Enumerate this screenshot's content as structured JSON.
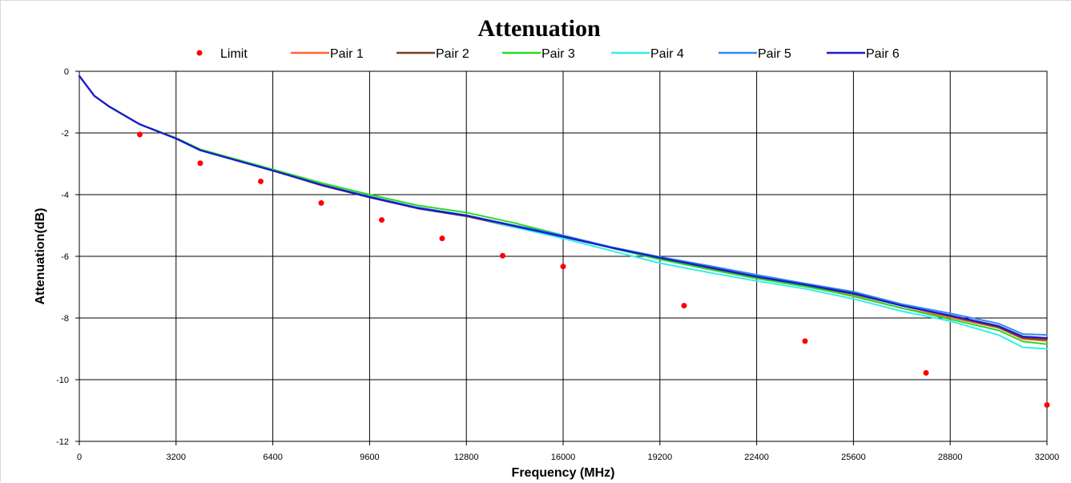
{
  "chart_data": {
    "type": "line",
    "title": "Attenuation",
    "xlabel": "Frequency (MHz)",
    "ylabel": "Attenuation(dB)",
    "xlim": [
      0,
      32000
    ],
    "ylim": [
      -12,
      0
    ],
    "x_ticks": [
      "0",
      "3200",
      "6400",
      "9600",
      "12800",
      "16000",
      "19200",
      "22400",
      "25600",
      "28800",
      "32000"
    ],
    "y_ticks": [
      "0",
      "-2",
      "-4",
      "-6",
      "-8",
      "-10",
      "-12"
    ],
    "x_tick_values": [
      0,
      3200,
      6400,
      9600,
      12800,
      16000,
      19200,
      22400,
      25600,
      28800,
      32000
    ],
    "y_tick_values": [
      0,
      -2,
      -4,
      -6,
      -8,
      -10,
      -12
    ],
    "grid": true,
    "legend_position": "top",
    "limit": {
      "name": "Limit",
      "color": "#ff0000",
      "x": [
        2000,
        4000,
        6000,
        8000,
        10000,
        12000,
        14000,
        16000,
        20000,
        24000,
        28000,
        32000
      ],
      "y": [
        -2.05,
        -2.98,
        -3.57,
        -4.27,
        -4.82,
        -5.42,
        -5.98,
        -6.33,
        -7.6,
        -8.75,
        -9.78,
        -10.82
      ]
    },
    "series": [
      {
        "name": "Pair 1",
        "color": "#ff6633",
        "x": [
          0,
          500,
          1000,
          2000,
          3200,
          4000,
          6400,
          8000,
          9600,
          11200,
          12800,
          14400,
          16000,
          17600,
          19200,
          20800,
          22400,
          24000,
          25600,
          27200,
          28800,
          30400,
          31200,
          32000
        ],
        "y": [
          -0.15,
          -0.8,
          -1.15,
          -1.72,
          -2.18,
          -2.56,
          -3.22,
          -3.68,
          -4.06,
          -4.42,
          -4.67,
          -5.0,
          -5.32,
          -5.72,
          -6.06,
          -6.36,
          -6.67,
          -6.95,
          -7.3,
          -7.68,
          -7.98,
          -8.32,
          -8.68,
          -8.75
        ]
      },
      {
        "name": "Pair 2",
        "color": "#7b3f1e",
        "x": [
          0,
          500,
          1000,
          2000,
          3200,
          4000,
          6400,
          8000,
          9600,
          11200,
          12800,
          14400,
          16000,
          17600,
          19200,
          20800,
          22400,
          24000,
          25600,
          27200,
          28800,
          30400,
          31200,
          32000
        ],
        "y": [
          -0.15,
          -0.8,
          -1.15,
          -1.72,
          -2.18,
          -2.56,
          -3.22,
          -3.7,
          -4.09,
          -4.45,
          -4.7,
          -5.06,
          -5.37,
          -5.72,
          -6.08,
          -6.4,
          -6.7,
          -6.95,
          -7.22,
          -7.6,
          -7.94,
          -8.3,
          -8.65,
          -8.7
        ]
      },
      {
        "name": "Pair 3",
        "color": "#22dd22",
        "x": [
          0,
          500,
          1000,
          2000,
          3200,
          4000,
          6400,
          8000,
          9600,
          11200,
          12800,
          14400,
          16000,
          17600,
          19200,
          20800,
          22400,
          24000,
          25600,
          27200,
          28800,
          30400,
          31200,
          32000
        ],
        "y": [
          -0.15,
          -0.8,
          -1.15,
          -1.72,
          -2.16,
          -2.53,
          -3.18,
          -3.62,
          -4.0,
          -4.35,
          -4.58,
          -4.92,
          -5.32,
          -5.73,
          -6.1,
          -6.42,
          -6.72,
          -6.98,
          -7.28,
          -7.68,
          -8.04,
          -8.4,
          -8.76,
          -8.85
        ]
      },
      {
        "name": "Pair 4",
        "color": "#33eeee",
        "x": [
          0,
          500,
          1000,
          2000,
          3200,
          4000,
          6400,
          8000,
          9600,
          11200,
          12800,
          14400,
          16000,
          17600,
          19200,
          20800,
          22400,
          24000,
          25600,
          27200,
          28800,
          30400,
          31200,
          32000
        ],
        "y": [
          -0.15,
          -0.8,
          -1.15,
          -1.72,
          -2.18,
          -2.56,
          -3.22,
          -3.68,
          -4.06,
          -4.42,
          -4.67,
          -5.06,
          -5.42,
          -5.82,
          -6.22,
          -6.52,
          -6.8,
          -7.05,
          -7.38,
          -7.78,
          -8.1,
          -8.55,
          -8.95,
          -9.0
        ]
      },
      {
        "name": "Pair 5",
        "color": "#3388ee",
        "x": [
          0,
          500,
          1000,
          2000,
          3200,
          4000,
          6400,
          8000,
          9600,
          11200,
          12800,
          14400,
          16000,
          17600,
          19200,
          20800,
          22400,
          24000,
          25600,
          27200,
          28800,
          30400,
          31200,
          32000
        ],
        "y": [
          -0.15,
          -0.8,
          -1.15,
          -1.72,
          -2.18,
          -2.56,
          -3.22,
          -3.68,
          -4.06,
          -4.42,
          -4.67,
          -5.0,
          -5.32,
          -5.7,
          -6.02,
          -6.3,
          -6.6,
          -6.88,
          -7.15,
          -7.55,
          -7.85,
          -8.18,
          -8.52,
          -8.55
        ]
      },
      {
        "name": "Pair 6",
        "color": "#1a1acc",
        "x": [
          0,
          500,
          1000,
          2000,
          3200,
          4000,
          6400,
          8000,
          9600,
          11200,
          12800,
          14400,
          16000,
          17600,
          19200,
          20800,
          22400,
          24000,
          25600,
          27200,
          28800,
          30400,
          31200,
          32000
        ],
        "y": [
          -0.15,
          -0.8,
          -1.15,
          -1.72,
          -2.18,
          -2.56,
          -3.22,
          -3.68,
          -4.08,
          -4.44,
          -4.68,
          -5.02,
          -5.36,
          -5.72,
          -6.05,
          -6.35,
          -6.66,
          -6.92,
          -7.2,
          -7.6,
          -7.92,
          -8.26,
          -8.6,
          -8.65
        ]
      }
    ]
  }
}
